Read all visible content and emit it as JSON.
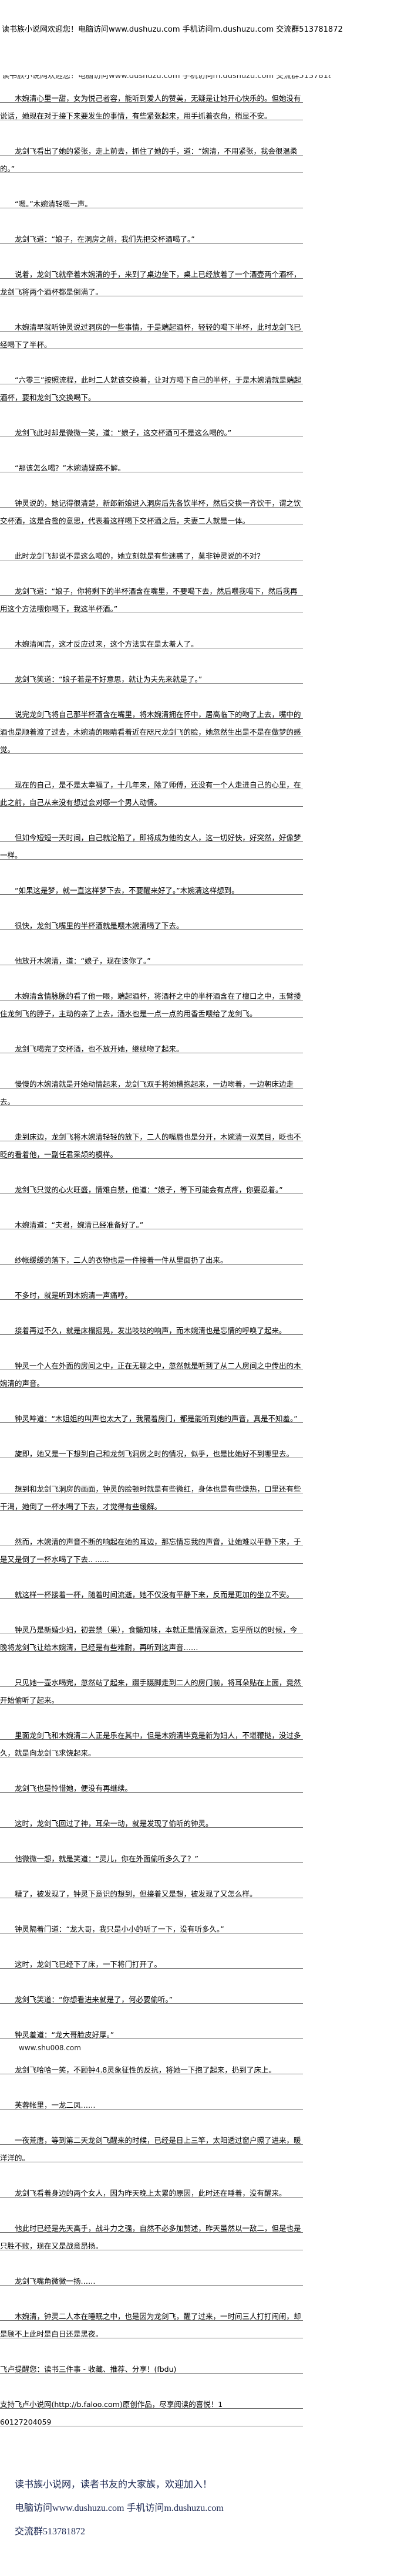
{
  "header": {
    "banner": "读书族小说网欢迎您！电脑访问www.dushuzu.com 手机访问m.dushuzu.com 交流群513781872"
  },
  "content": {
    "paragraphs": [
      {
        "text": "木婉清心里一甜，女为悦己者容，能听到爱人的赞美，无疑是让她开心快乐的。但她没有说话，她现在对于接下来要发生的事情，有些紧张起来，用手抓着衣角，稍显不安。"
      },
      {
        "text": "龙剑飞看出了她的紧张，走上前去，抓住了她的手，道：“婉清，不用紧张，我会很温柔的。”"
      },
      {
        "text": "“嗯。”木婉清轻嗯一声。"
      },
      {
        "text": "龙剑飞道：“娘子，在洞房之前，我们先把交杯酒喝了。”"
      },
      {
        "text": "说着，龙剑飞就牵着木婉清的手，来到了桌边坐下，桌上已经放着了一个酒壶两个酒杯，龙剑飞将两个酒杯都是倒满了。"
      },
      {
        "text": "木婉清早就听钟灵说过洞房的一些事情，于是端起酒杯，轻轻的喝下半杯，此时龙剑飞已经喝下了半杯。"
      },
      {
        "text": "“六零三”按照流程，此时二人就该交换着，让对方喝下自己的半杯，于是木婉清就是端起酒杯，要和龙剑飞交换喝下。"
      },
      {
        "text": "龙剑飞此时却是微微一笑，道：“娘子，这交杯酒可不是这么喝的。”"
      },
      {
        "text": "“那该怎么喝？”木婉清疑惑不解。"
      },
      {
        "text": "钟灵说的，她记得很清楚，新郎新娘进入洞房后先各饮半杯，然后交换一齐饮干，谓之饮交杯酒，这是合卺的意思，代表着这样喝下交杯酒之后，夫妻二人就是一体。"
      },
      {
        "text": "此时龙剑飞却说不是这么喝的，她立刻就是有些迷惑了，莫非钟灵说的不对？"
      },
      {
        "text": "龙剑飞道：“娘子，你将剩下的半杯酒含在嘴里，不要喝下去，然后喂我喝下，然后我再用这个方法喂你喝下，我这半杯酒。”"
      },
      {
        "text": "木婉清闻言，这才反应过来，这个方法实在是太羞人了。"
      },
      {
        "text": "龙剑飞笑道：“娘子若是不好意思，就让为夫先来就是了。”"
      },
      {
        "text": "说完龙剑飞将自己那半杯酒含在嘴里，将木婉清拥在怀中，居高临下的吻了上去，嘴中的酒也是顺着渡了过去，木婉清的眼睛看着近在咫尺龙剑飞的脸，她忽然生出是不是在做梦的感觉。"
      },
      {
        "text": "现在的自己，是不是太幸福了，十几年来，除了师傅，还没有一个人走进自己的心里，在此之前，自己从来没有想过会对哪一个男人动情。"
      },
      {
        "text": "但如今短短一天时间，自己就沦陷了，即将成为他的女人，这一切好快，好突然，好像梦一样。"
      },
      {
        "text": "“如果这是梦，就一直这样梦下去，不要醒来好了。”木婉清这样想到。"
      },
      {
        "text": "很快，龙剑飞嘴里的半杯酒就是喂木婉清喝了下去。"
      },
      {
        "text": "他放开木婉清，道：“娘子，现在该你了。”"
      },
      {
        "text": "木婉清含情脉脉的看了他一眼，端起酒杯，将酒杯之中的半杯酒含在了檀口之中，玉臂搂住龙剑飞的脖子，主动的亲了上去，酒水也是一点一点的用香舌喂给了龙剑飞。"
      },
      {
        "text": "龙剑飞喝完了交杯酒，也不放开她，继续吻了起来。"
      },
      {
        "text": "慢慢的木婉清就是开始动情起来，龙剑飞双手将她横抱起来，一边吻着，一边朝床边走去。"
      },
      {
        "text": "走到床边，龙剑飞将木婉清轻轻的放下，二人的嘴唇也是分开，木婉清一双美目，眨也不眨的看着他，一副任君采颉的模样。"
      },
      {
        "text": "龙剑飞只觉的心火旺盛，情难自禁，他道：“娘子，等下可能会有点疼，你要忍着。”"
      },
      {
        "text": "木婉清道：“夫君，婉清已经准备好了。”"
      },
      {
        "text": "纱帐缓缓的落下，二人的衣物也是一件接着一件从里面扔了出来。"
      },
      {
        "text": "不多时，就是听到木婉清一声痛哼。"
      },
      {
        "text": "接着再过不久，就是床榻摇晃，发出吱吱的响声，而木婉清也是忘情的呼唤了起来。"
      },
      {
        "text": "钟灵一个人在外面的房间之中，正在无聊之中，忽然就是听到了从二人房间之中传出的木婉清的声音。"
      },
      {
        "text": "钟灵啐道：“木姐姐的叫声也太大了，我隔着房门，都是能听到她的声音，真是不知羞。”"
      },
      {
        "text": "旋即，她又是一下想到自己和龙剑飞洞房之时的情况，似乎，也是比她好不到哪里去。"
      },
      {
        "text": "想到和龙剑飞洞房的画面，钟灵的脸顿时就是有些微红，身体也是有些燥热，口里还有些干渴，她倒了一杯水喝了下去，才觉得有些缓解。"
      },
      {
        "text": "然而，木婉清的声音不断的响起在她的耳边，那忘情忘我的声音，让她难以平静下来，于是又是倒了一杯水喝了下去.. ......"
      },
      {
        "text": "就这样一杯接着一杯，随着时间流逝，她不仅没有平静下来，反而是更加的坐立不安。"
      },
      {
        "text": "钟灵乃是新婚少妇，初尝禁（果），食髓知味，本就正是情深意浓，忘乎所以的时候，今晚将龙剑飞让给木婉清，已经是有些难耐，再听到这声音……"
      },
      {
        "text": "只见她一壶水喝完，忽然站了起来，蹑手蹑脚走到二人的房门前，将耳朵贴在上面，竟然开始偷听了起来。"
      },
      {
        "text": "里面龙剑飞和木婉清二人正是乐在其中，但是木婉清毕竟是新为妇人，不堪鞭挞，没过多久，就是向龙剑飞求饶起来。"
      },
      {
        "text": "龙剑飞也是怜惜她，便没有再继续。"
      },
      {
        "text": "这时，龙剑飞回过了神，耳朵一动，就是发现了偷听的钟灵。"
      },
      {
        "text": "他微微一想，就是笑道：“灵儿，你在外面偷听多久了？”"
      },
      {
        "text": "糟了，被发现了，钟灵下意识的想到，但接着又是想，被发现了又怎么样。"
      },
      {
        "text": "钟灵隔着门道：“龙大哥，我只是小小的听了一下，没有听多久。”"
      },
      {
        "text": "这时，龙剑飞已经下了床，一下将门打开了。"
      },
      {
        "text": "龙剑飞笑道：“你想看进来就是了，何必要偷听。”"
      },
      {
        "text": "钟灵羞道：“龙大哥脸皮好厚。”"
      },
      {
        "text": "龙剑飞哈哈一笑，不顾钟4.8灵象征性的反抗，将她一下抱了起来，扔到了床上。",
        "ad": "www.shu008.com"
      },
      {
        "text": "芙蓉帐里，一龙二凤……"
      },
      {
        "text": "一夜荒唐，等到第二天龙剑飞醒来的时候，已经是日上三竿，太阳透过窗户照了进来，暖洋洋的。"
      },
      {
        "text": "龙剑飞看着身边的两个女人，因为昨天晚上太累的原因，此时还在睡着，没有醒来。"
      },
      {
        "text": "他此时已经是先天高手，战斗力之强，自然不必多加赘述，昨天虽然以一敌二，但是也是只胜不败，现在又是战意昂扬。"
      },
      {
        "text": "龙剑飞嘴角微微一扬……"
      },
      {
        "text": "木婉清，钟灵二人本在睡眠之中，也是因为龙剑飞，醒了过来，一时间三人打打闹闹，却是顾不上此时是白日还是黑夜。"
      },
      {
        "text": "飞卢提醒您：读书三件事 - 收藏、推荐、分享！(fbdu)",
        "noindent": true
      },
      {
        "text": "支持飞卢小说网(http://b.faloo.com)原创作品，尽享阅读的喜悦！1\n60127204059",
        "noindent": true
      }
    ]
  },
  "footer": {
    "line1": "读书族小说网，读者书友的大家族，欢迎加入！",
    "line2": "电脑访问www.dushuzu.com 手机访问m.dushuzu.com",
    "line3": "交流群513781872"
  }
}
